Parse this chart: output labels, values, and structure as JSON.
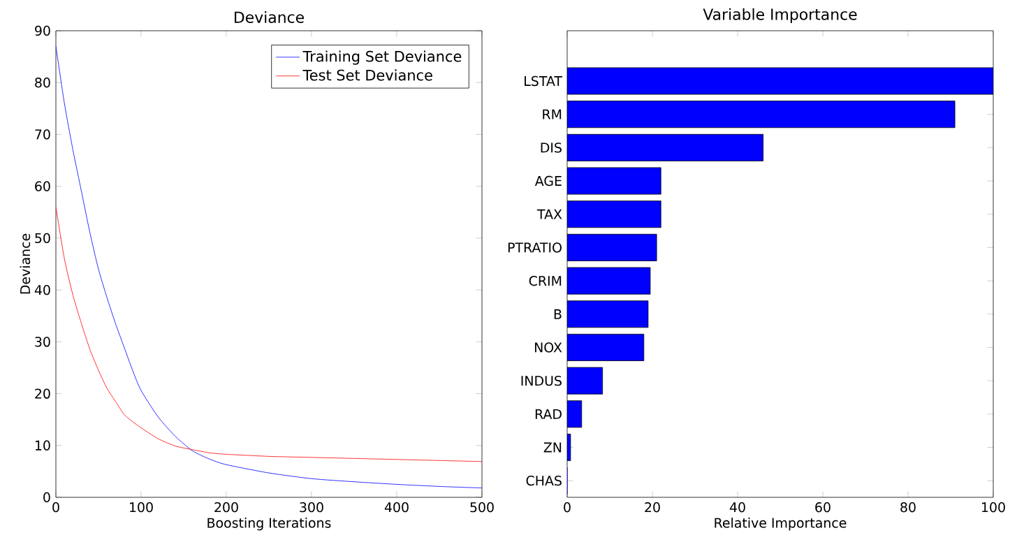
{
  "chart_data": [
    {
      "type": "line",
      "title": "Deviance",
      "xlabel": "Boosting Iterations",
      "ylabel": "Deviance",
      "x": [
        0,
        10,
        20,
        30,
        40,
        50,
        60,
        70,
        80,
        90,
        100,
        120,
        140,
        160,
        180,
        200,
        250,
        300,
        350,
        400,
        450,
        500
      ],
      "series": [
        {
          "name": "Training Set Deviance",
          "color": "#0000ff",
          "values": [
            87,
            76,
            67,
            59,
            51,
            44,
            38.5,
            33.5,
            29,
            24.5,
            20.6,
            15.5,
            11.8,
            9.0,
            7.4,
            6.3,
            4.7,
            3.6,
            3.0,
            2.5,
            2.1,
            1.8
          ]
        },
        {
          "name": "Test Set Deviance",
          "color": "#ff0000",
          "values": [
            56,
            46,
            39,
            33.5,
            28.5,
            24.5,
            21,
            18.5,
            16,
            14.6,
            13.4,
            11.3,
            9.9,
            9.2,
            8.6,
            8.3,
            7.9,
            7.7,
            7.5,
            7.3,
            7.1,
            6.9
          ]
        }
      ],
      "xlim": [
        0,
        500
      ],
      "ylim": [
        0,
        90
      ],
      "xticks": [
        0,
        100,
        200,
        300,
        400,
        500
      ],
      "yticks": [
        0,
        10,
        20,
        30,
        40,
        50,
        60,
        70,
        80,
        90
      ],
      "legend": "top right"
    },
    {
      "type": "bar",
      "orientation": "horizontal",
      "title": "Variable Importance",
      "xlabel": "Relative Importance",
      "categories": [
        "LSTAT",
        "RM",
        "DIS",
        "AGE",
        "TAX",
        "PTRATIO",
        "CRIM",
        "B",
        "NOX",
        "INDUS",
        "RAD",
        "ZN",
        "CHAS"
      ],
      "values": [
        100,
        91,
        46,
        22,
        22,
        21,
        19.5,
        19,
        18,
        8.3,
        3.4,
        0.8,
        0
      ],
      "color": "#0000ff",
      "xlim": [
        0,
        100
      ],
      "xticks": [
        0,
        20,
        40,
        60,
        80,
        100
      ]
    }
  ]
}
